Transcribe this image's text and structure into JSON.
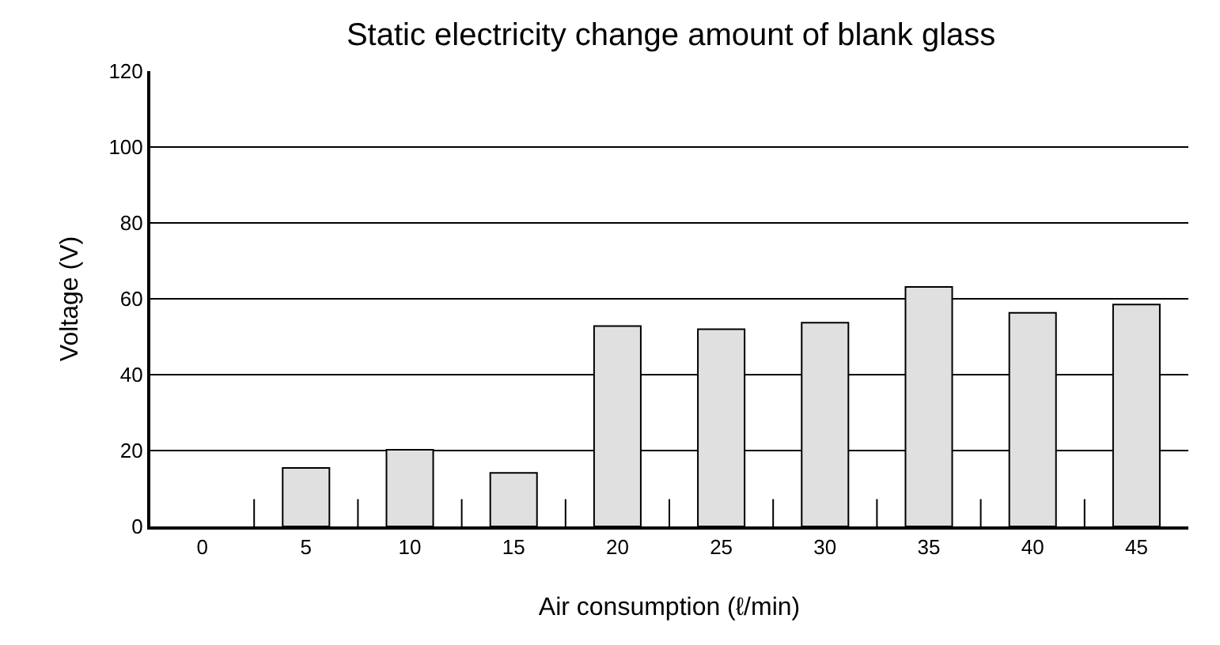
{
  "chart_data": {
    "type": "bar",
    "title": "Static electricity change amount of blank glass",
    "xlabel": "Air consumption (ℓ/min)",
    "ylabel": "Voltage (V)",
    "categories": [
      "0",
      "5",
      "10",
      "15",
      "20",
      "25",
      "30",
      "35",
      "40",
      "45"
    ],
    "values": [
      null,
      15.4,
      20.2,
      14.1,
      52.8,
      52.0,
      53.7,
      63.1,
      56.3,
      58.5
    ],
    "color": "#e0e0e0",
    "ylim": [
      0,
      120
    ],
    "yticks": [
      0,
      20,
      40,
      60,
      80,
      100,
      120
    ],
    "grid": "y"
  }
}
